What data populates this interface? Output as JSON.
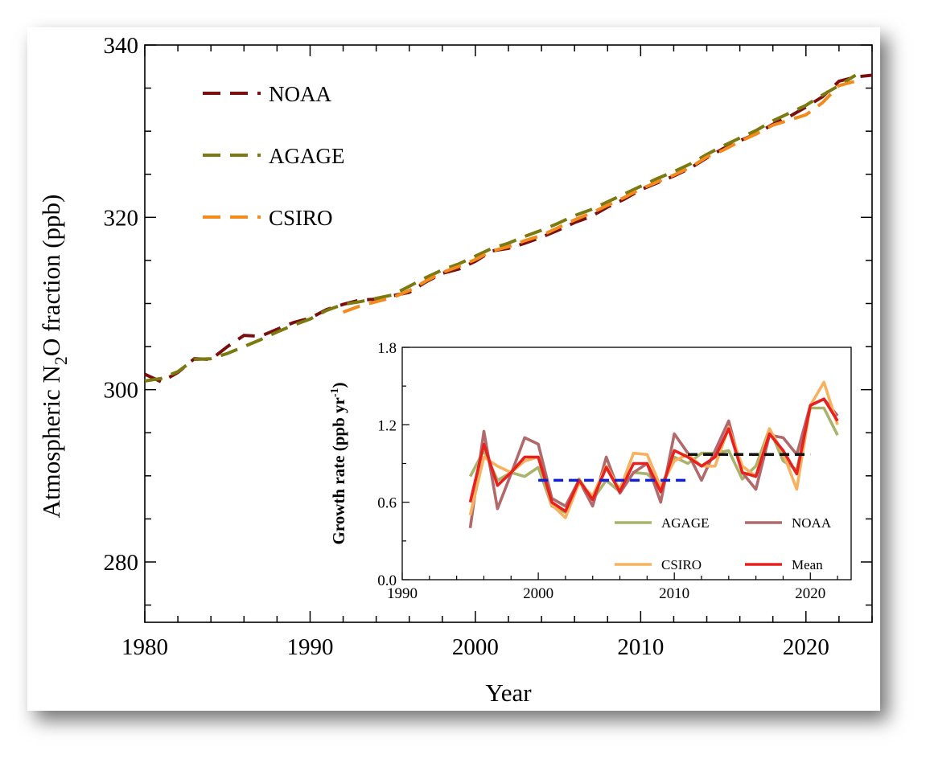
{
  "chart_data": [
    {
      "type": "line",
      "xlabel": "Year",
      "ylabel": "Atmospheric N2O fraction (ppb)",
      "ylabel_parts": {
        "pre": "Atmospheric N",
        "sub": "2",
        "post": "O fraction (ppb)"
      },
      "xlim": [
        1980,
        2024
      ],
      "ylim": [
        273,
        340
      ],
      "xticks": [
        1980,
        1990,
        2000,
        2010,
        2020
      ],
      "yticks": [
        280,
        300,
        320,
        340
      ],
      "grid": false,
      "legend_position": "top-left",
      "series": [
        {
          "name": "NOAA",
          "color": "#7b0f0f",
          "x": [
            1980,
            1981,
            1982,
            1983,
            1984,
            1985,
            1986,
            1987,
            1988,
            1989,
            1990,
            1991,
            1992,
            1993,
            1994,
            1995,
            1996,
            1997,
            1998,
            1999,
            2000,
            2001,
            2002,
            2003,
            2004,
            2005,
            2006,
            2007,
            2008,
            2009,
            2010,
            2011,
            2012,
            2013,
            2014,
            2015,
            2016,
            2017,
            2018,
            2019,
            2020,
            2021,
            2022,
            2023,
            2024
          ],
          "y": [
            301.8,
            300.9,
            302.0,
            303.6,
            303.5,
            305.0,
            306.3,
            306.2,
            307.0,
            307.8,
            308.3,
            309.3,
            309.9,
            310.4,
            310.5,
            310.9,
            311.3,
            312.5,
            313.5,
            314.0,
            314.9,
            316.1,
            316.4,
            317.0,
            317.7,
            318.5,
            319.4,
            320.1,
            321.2,
            322.1,
            323.2,
            324.0,
            324.8,
            325.7,
            326.9,
            328.0,
            328.9,
            329.7,
            330.8,
            331.7,
            332.8,
            334.0,
            335.8,
            336.3,
            336.5
          ]
        },
        {
          "name": "AGAGE",
          "color": "#7a7a10",
          "x": [
            1980,
            1981,
            1982,
            1983,
            1984,
            1985,
            1986,
            1987,
            1988,
            1989,
            1990,
            1991,
            1992,
            1993,
            1994,
            1995,
            1996,
            1997,
            1998,
            1999,
            2000,
            2001,
            2002,
            2003,
            2004,
            2005,
            2006,
            2007,
            2008,
            2009,
            2010,
            2011,
            2012,
            2013,
            2014,
            2015,
            2016,
            2017,
            2018,
            2019,
            2020,
            2021,
            2022,
            2023
          ],
          "y": [
            301.0,
            301.3,
            302.1,
            303.5,
            303.6,
            304.2,
            305.0,
            305.8,
            306.7,
            307.5,
            308.2,
            309.2,
            309.9,
            310.2,
            310.6,
            311.0,
            312.0,
            313.0,
            313.9,
            314.6,
            315.5,
            316.4,
            317.0,
            317.8,
            318.5,
            319.3,
            320.2,
            320.9,
            321.8,
            322.7,
            323.6,
            324.5,
            325.3,
            326.2,
            327.3,
            328.3,
            329.2,
            330.1,
            331.2,
            332.1,
            333.0,
            334.2,
            335.3,
            336.5
          ]
        },
        {
          "name": "CSIRO",
          "color": "#f28a1e",
          "x": [
            1992,
            1993,
            1994,
            1995,
            1996,
            1997,
            1998,
            1999,
            2000,
            2001,
            2002,
            2003,
            2004,
            2005,
            2006,
            2007,
            2008,
            2009,
            2010,
            2011,
            2012,
            2013,
            2014,
            2015,
            2016,
            2017,
            2018,
            2019,
            2020,
            2021,
            2022,
            2023
          ],
          "y": [
            309.0,
            309.7,
            310.2,
            310.7,
            311.5,
            312.6,
            313.6,
            314.3,
            315.1,
            316.1,
            316.6,
            317.3,
            317.9,
            318.8,
            319.7,
            320.5,
            321.4,
            322.3,
            323.3,
            324.1,
            324.9,
            325.8,
            327.0,
            327.8,
            328.8,
            329.7,
            330.7,
            331.3,
            331.9,
            333.3,
            335.3,
            335.8
          ]
        }
      ]
    },
    {
      "type": "line",
      "xlabel": "",
      "ylabel": "Growth rate (ppb yr-1)",
      "ylabel_parts": {
        "pre": "Growth rate (ppb yr",
        "sup": "-1",
        "post": ")"
      },
      "xlim": [
        1990,
        2023
      ],
      "ylim": [
        0.0,
        1.8
      ],
      "xticks": [
        1990,
        2000,
        2010,
        2020
      ],
      "yticks": [
        0.0,
        0.6,
        1.2,
        1.8
      ],
      "ytick_labels": [
        "0.0",
        "0.6",
        "1.2",
        "1.8"
      ],
      "grid": false,
      "legend_position": "bottom-right",
      "series": [
        {
          "name": "AGAGE",
          "color": "#a9b36a",
          "x": [
            1995,
            1996,
            1997,
            1998,
            1999,
            2000,
            2001,
            2002,
            2003,
            2004,
            2005,
            2006,
            2007,
            2008,
            2009,
            2010,
            2011,
            2012,
            2013,
            2014,
            2015,
            2016,
            2017,
            2018,
            2019,
            2020,
            2021,
            2022
          ],
          "y": [
            0.8,
            1.0,
            0.77,
            0.83,
            0.8,
            0.87,
            0.57,
            0.52,
            0.78,
            0.62,
            0.77,
            0.68,
            0.83,
            0.82,
            0.72,
            0.95,
            0.9,
            0.98,
            0.98,
            1.0,
            0.78,
            0.88,
            1.17,
            0.92,
            0.85,
            1.33,
            1.33,
            1.12
          ]
        },
        {
          "name": "NOAA",
          "color": "#b06a6c",
          "x": [
            1995,
            1996,
            1997,
            1998,
            1999,
            2000,
            2001,
            2002,
            2003,
            2004,
            2005,
            2006,
            2007,
            2008,
            2009,
            2010,
            2011,
            2012,
            2013,
            2014,
            2015,
            2016,
            2017,
            2018,
            2019,
            2020,
            2021,
            2022
          ],
          "y": [
            0.4,
            1.15,
            0.55,
            0.82,
            1.1,
            1.05,
            0.63,
            0.57,
            0.77,
            0.57,
            0.95,
            0.67,
            0.83,
            0.9,
            0.6,
            1.13,
            0.98,
            0.77,
            1.0,
            1.23,
            0.83,
            0.7,
            1.12,
            1.1,
            0.97,
            1.35,
            1.4,
            1.27
          ]
        },
        {
          "name": "CSIRO",
          "color": "#f6b25e",
          "x": [
            1995,
            1996,
            1997,
            1998,
            1999,
            2000,
            2001,
            2002,
            2003,
            2004,
            2005,
            2006,
            2007,
            2008,
            2009,
            2010,
            2011,
            2012,
            2013,
            2014,
            2015,
            2016,
            2017,
            2018,
            2019,
            2020,
            2021,
            2022
          ],
          "y": [
            0.5,
            0.95,
            0.88,
            0.83,
            0.92,
            0.95,
            0.58,
            0.48,
            0.75,
            0.65,
            0.88,
            0.7,
            0.98,
            0.97,
            0.72,
            0.92,
            0.97,
            0.88,
            0.88,
            1.18,
            0.88,
            0.8,
            1.17,
            0.98,
            0.7,
            1.35,
            1.53,
            1.2
          ]
        },
        {
          "name": "Mean",
          "color": "#e8201e",
          "x": [
            1995,
            1996,
            1997,
            1998,
            1999,
            2000,
            2001,
            2002,
            2003,
            2004,
            2005,
            2006,
            2007,
            2008,
            2009,
            2010,
            2011,
            2012,
            2013,
            2014,
            2015,
            2016,
            2017,
            2018,
            2019,
            2020,
            2021,
            2022
          ],
          "y": [
            0.6,
            1.05,
            0.73,
            0.83,
            0.95,
            0.95,
            0.6,
            0.53,
            0.77,
            0.62,
            0.87,
            0.68,
            0.9,
            0.9,
            0.68,
            1.0,
            0.95,
            0.88,
            0.95,
            1.17,
            0.83,
            0.8,
            1.13,
            1.0,
            0.82,
            1.35,
            1.4,
            1.23
          ]
        }
      ],
      "reference_lines": [
        {
          "color": "#1020d8",
          "x": [
            2000,
            2011
          ],
          "y": 0.77
        },
        {
          "color": "#111111",
          "x": [
            2011,
            2020
          ],
          "y": 0.97
        }
      ]
    }
  ]
}
